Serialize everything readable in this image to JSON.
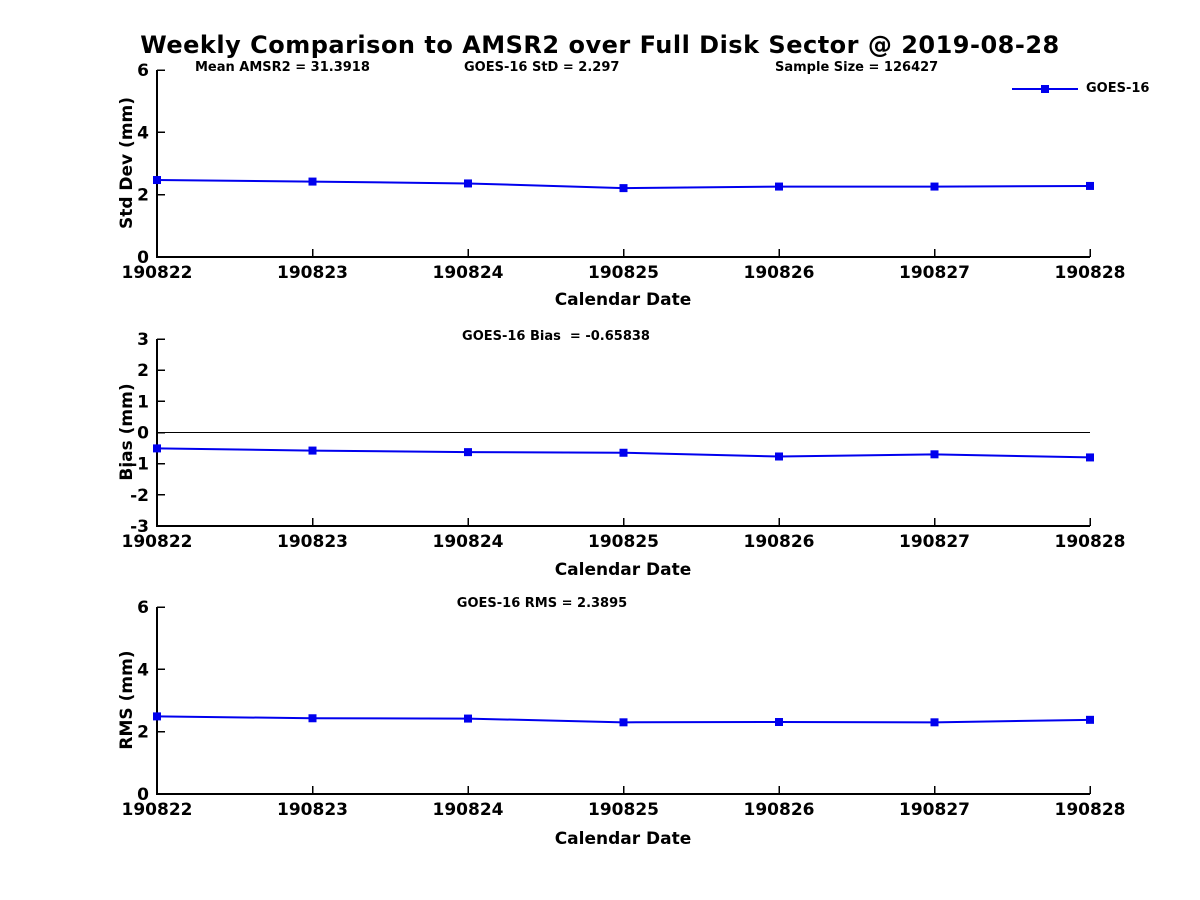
{
  "title": "Weekly Comparison to AMSR2 over Full Disk Sector @ 2019-08-28",
  "legend": {
    "label": "GOES-16"
  },
  "colors": {
    "series": "#0000EE",
    "axis": "#000000",
    "text": "#000000"
  },
  "chart_data": [
    {
      "type": "line",
      "name": "std_dev",
      "ylabel": "Std Dev (mm)",
      "xlabel": "Calendar Date",
      "categories": [
        "190822",
        "190823",
        "190824",
        "190825",
        "190826",
        "190827",
        "190828"
      ],
      "series": [
        {
          "name": "GOES-16",
          "marker": "square",
          "color": "#0000EE",
          "values": [
            2.47,
            2.42,
            2.36,
            2.21,
            2.26,
            2.26,
            2.28
          ]
        }
      ],
      "ylim": [
        0,
        6
      ],
      "yticks": [
        0,
        2,
        4,
        6
      ],
      "zero_line": false,
      "legend_position": "top-right",
      "annotations": [
        {
          "text": "Mean AMSR2 = 31.3918"
        },
        {
          "text": "GOES-16 StD = 2.297"
        },
        {
          "text": "Sample Size = 126427"
        }
      ]
    },
    {
      "type": "line",
      "name": "bias",
      "ylabel": "Bias (mm)",
      "xlabel": "Calendar Date",
      "categories": [
        "190822",
        "190823",
        "190824",
        "190825",
        "190826",
        "190827",
        "190828"
      ],
      "series": [
        {
          "name": "GOES-16",
          "marker": "square",
          "color": "#0000EE",
          "values": [
            -0.51,
            -0.58,
            -0.63,
            -0.65,
            -0.77,
            -0.7,
            -0.8
          ]
        }
      ],
      "ylim": [
        -3,
        3
      ],
      "yticks": [
        -3,
        -2,
        -1,
        0,
        1,
        2,
        3
      ],
      "zero_line": true,
      "annotations": [
        {
          "text": "GOES-16 Bias  = -0.65838"
        }
      ]
    },
    {
      "type": "line",
      "name": "rms",
      "ylabel": "RMS (mm)",
      "xlabel": "Calendar Date",
      "categories": [
        "190822",
        "190823",
        "190824",
        "190825",
        "190826",
        "190827",
        "190828"
      ],
      "series": [
        {
          "name": "GOES-16",
          "marker": "square",
          "color": "#0000EE",
          "values": [
            2.49,
            2.43,
            2.42,
            2.3,
            2.31,
            2.3,
            2.38
          ]
        }
      ],
      "ylim": [
        0,
        6
      ],
      "yticks": [
        0,
        2,
        4,
        6
      ],
      "zero_line": false,
      "annotations": [
        {
          "text": "GOES-16 RMS = 2.3895"
        }
      ]
    }
  ]
}
